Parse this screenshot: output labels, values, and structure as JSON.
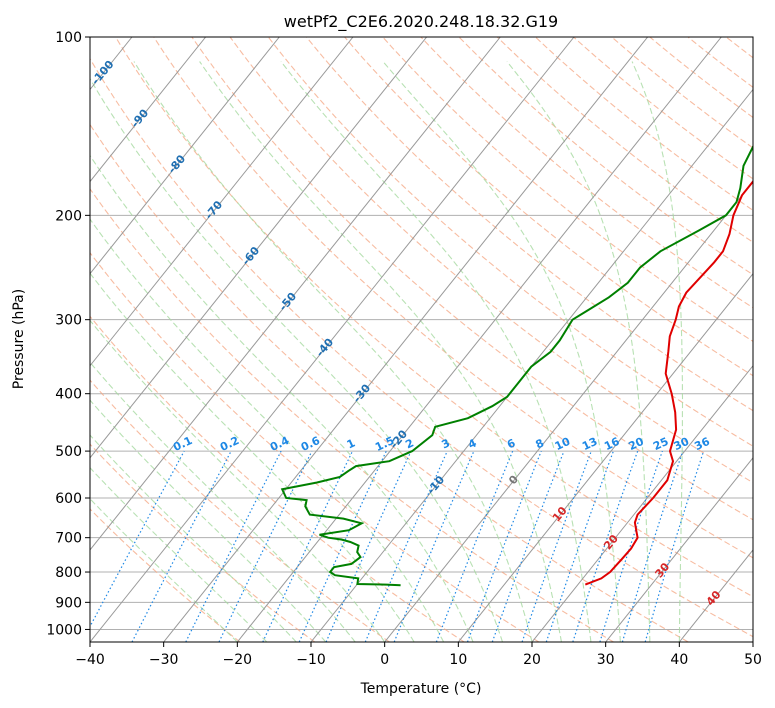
{
  "chart_data": {
    "type": "line",
    "title": "wetPf2_C2E6.2020.248.18.32.G19",
    "xlabel": "Temperature (°C)",
    "ylabel": "Pressure (hPa)",
    "x_ticks": [
      "−40",
      "−30",
      "−20",
      "−10",
      "0",
      "10",
      "20",
      "30",
      "40",
      "50"
    ],
    "y_ticks": [
      "100",
      "200",
      "300",
      "400",
      "500",
      "600",
      "700",
      "800",
      "900",
      "1000"
    ],
    "xlim": [
      -40,
      50
    ],
    "ylim_hpa": [
      1050,
      100
    ],
    "y_scale": "log",
    "grid": true,
    "colors": {
      "temperature": "#e00000",
      "dewpoint": "#008000",
      "isotherm": "#999999",
      "dry_adiabat": "#f4a582",
      "moist_adiabat": "#a6d9a0",
      "mixing_ratio": "#1e88e5",
      "temp_label": "#1f6fb2",
      "red_label": "#d62728"
    },
    "series": [
      {
        "key": "temperature",
        "points": [
          [
            21.0,
            840
          ],
          [
            22.5,
            820
          ],
          [
            23.0,
            800
          ],
          [
            23.2,
            760
          ],
          [
            23.3,
            730
          ],
          [
            23.0,
            700
          ],
          [
            22.0,
            680
          ],
          [
            21.0,
            660
          ],
          [
            20.5,
            640
          ],
          [
            20.8,
            600
          ],
          [
            20.8,
            560
          ],
          [
            19.5,
            520
          ],
          [
            18.0,
            500
          ],
          [
            16.5,
            460
          ],
          [
            14.5,
            430
          ],
          [
            12.0,
            400
          ],
          [
            9.0,
            370
          ],
          [
            7.0,
            340
          ],
          [
            5.5,
            320
          ],
          [
            4.5,
            300
          ],
          [
            3.5,
            285
          ],
          [
            3.0,
            270
          ],
          [
            3.5,
            240
          ],
          [
            3.5,
            230
          ],
          [
            2.5,
            215
          ],
          [
            1.0,
            200
          ],
          [
            0.0,
            185
          ],
          [
            0.0,
            170
          ],
          [
            1.0,
            155
          ],
          [
            2.5,
            140
          ],
          [
            3.5,
            125
          ],
          [
            5.0,
            115
          ],
          [
            7.0,
            108
          ],
          [
            9.5,
            100
          ]
        ]
      },
      {
        "key": "dewpoint",
        "points": [
          [
            -4,
            842
          ],
          [
            -6,
            840
          ],
          [
            -10,
            838
          ],
          [
            -10.5,
            820
          ],
          [
            -14,
            810
          ],
          [
            -15,
            800
          ],
          [
            -15,
            785
          ],
          [
            -13,
            775
          ],
          [
            -12.5,
            755
          ],
          [
            -13.5,
            740
          ],
          [
            -14,
            722
          ],
          [
            -15.5,
            712
          ],
          [
            -17,
            705
          ],
          [
            -19,
            700
          ],
          [
            -20.5,
            692
          ],
          [
            -17,
            680
          ],
          [
            -16,
            662
          ],
          [
            -19,
            650
          ],
          [
            -24,
            640
          ],
          [
            -25.5,
            620
          ],
          [
            -26,
            605
          ],
          [
            -29,
            600
          ],
          [
            -30.5,
            580
          ],
          [
            -26.5,
            565
          ],
          [
            -24,
            553
          ],
          [
            -23.5,
            540
          ],
          [
            -23,
            530
          ],
          [
            -19,
            520
          ],
          [
            -17,
            500
          ],
          [
            -16,
            470
          ],
          [
            -16.5,
            455
          ],
          [
            -13,
            440
          ],
          [
            -11,
            420
          ],
          [
            -10,
            405
          ],
          [
            -10,
            380
          ],
          [
            -10,
            360
          ],
          [
            -9,
            340
          ],
          [
            -9,
            325
          ],
          [
            -9.5,
            300
          ],
          [
            -8.5,
            290
          ],
          [
            -7,
            275
          ],
          [
            -6,
            260
          ],
          [
            -6,
            245
          ],
          [
            -5,
            230
          ],
          [
            -2,
            212
          ],
          [
            0,
            200
          ],
          [
            0,
            190
          ],
          [
            -1,
            180
          ],
          [
            -3,
            165
          ],
          [
            -4,
            150
          ],
          [
            -4,
            140
          ],
          [
            -3,
            130
          ],
          [
            -1,
            120
          ],
          [
            1,
            110
          ],
          [
            3,
            100
          ]
        ]
      }
    ],
    "isotherm_labels": [
      "-100",
      "-90",
      "-80",
      "-70",
      "-60",
      "-50",
      "-40",
      "-30",
      "-20",
      "-10",
      "0",
      "10",
      "20",
      "30",
      "40"
    ],
    "mixing_ratio_labels": [
      "0.1",
      "0.2",
      "0.4",
      "0.6",
      "1",
      "1.5",
      "2",
      "3",
      "4",
      "6",
      "8",
      "10",
      "13",
      "16",
      "20",
      "25",
      "30",
      "36"
    ]
  }
}
